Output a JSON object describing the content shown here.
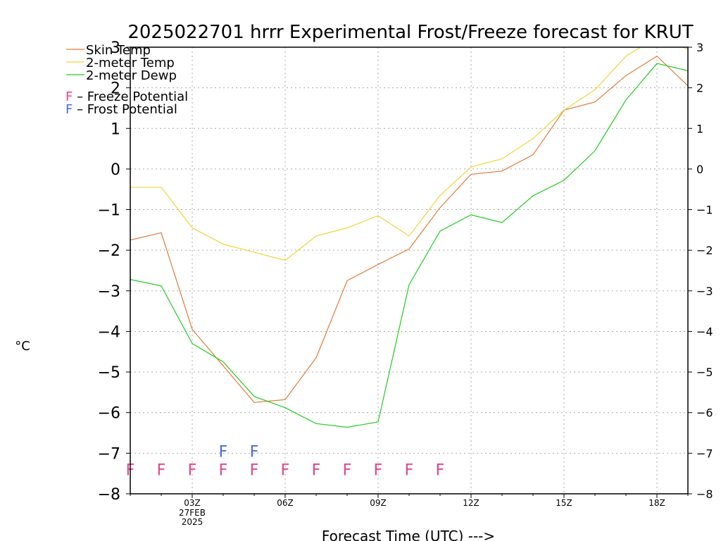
{
  "chart_data": {
    "type": "line",
    "title": "2025022701 hrrr Experimental Frost/Freeze forecast for KRUT",
    "xlabel": "Forecast Time (UTC) --->",
    "ylabel": "°C",
    "ylim": [
      -8,
      3
    ],
    "xlim": [
      1,
      19
    ],
    "grid": true,
    "y_ticks": [
      -8,
      -7,
      -6,
      -5,
      -4,
      -3,
      -2,
      -1,
      0,
      1,
      2,
      3
    ],
    "y_tick_labels": [
      "−8",
      "−7",
      "−6",
      "−5",
      "−4",
      "−3",
      "−2",
      "−1",
      "0",
      "1",
      "2",
      "3"
    ],
    "x_ticks": [
      3,
      6,
      9,
      12,
      15,
      18
    ],
    "x_tick_labels": [
      "03Z",
      "06Z",
      "09Z",
      "12Z",
      "15Z",
      "18Z"
    ],
    "x_date_label": [
      "27FEB",
      "2025"
    ],
    "x": [
      1,
      2,
      3,
      4,
      5,
      6,
      7,
      8,
      9,
      10,
      11,
      12,
      13,
      14,
      15,
      16,
      17,
      18,
      19
    ],
    "series": [
      {
        "name": "Skin Temp",
        "color": "#e07a3a",
        "values": [
          -1.75,
          -1.57,
          -3.95,
          -4.85,
          -5.75,
          -5.68,
          -4.65,
          -2.75,
          -2.35,
          -1.97,
          -0.95,
          -0.13,
          -0.05,
          0.35,
          1.45,
          1.65,
          2.3,
          2.78,
          2.05
        ]
      },
      {
        "name": "2-meter Temp",
        "color": "#f0d43a",
        "values": [
          -0.45,
          -0.45,
          -1.45,
          -1.85,
          -2.05,
          -2.25,
          -1.65,
          -1.45,
          -1.15,
          -1.65,
          -0.65,
          0.05,
          0.25,
          0.75,
          1.45,
          1.95,
          2.78,
          3.25,
          2.95
        ]
      },
      {
        "name": "2-meter Dewp",
        "color": "#22cc22",
        "values": [
          -2.72,
          -2.88,
          -4.3,
          -4.75,
          -5.6,
          -5.88,
          -6.27,
          -6.36,
          -6.23,
          -2.85,
          -1.53,
          -1.13,
          -1.32,
          -0.66,
          -0.28,
          0.45,
          1.7,
          2.6,
          2.42
        ]
      }
    ],
    "legend_position": "top-left",
    "markers": {
      "freeze": {
        "label": "F",
        "name": "Freeze Potential",
        "color": "#e0468a",
        "x": [
          1,
          2,
          3,
          4,
          5,
          6,
          7,
          8,
          9,
          10,
          11
        ]
      },
      "frost": {
        "label": "F",
        "name": "Frost Potential",
        "color": "#4a6ae0",
        "x": [
          4,
          5
        ]
      }
    },
    "legend": {
      "entries": [
        "Skin Temp",
        "2-meter Temp",
        "2-meter Dewp"
      ],
      "markers": [
        "F - Freeze Potential",
        "F - Frost Potential"
      ]
    }
  }
}
